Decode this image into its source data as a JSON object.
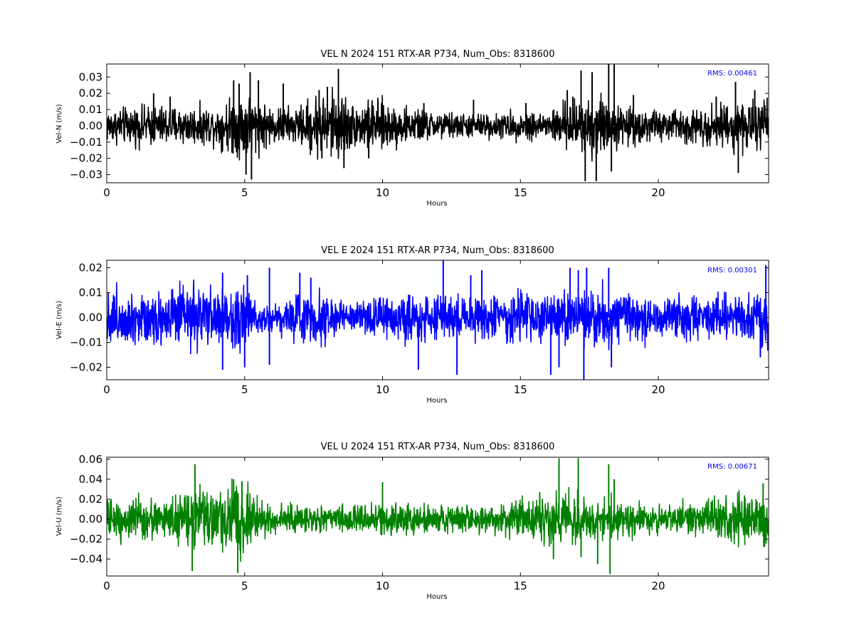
{
  "chart_data": [
    {
      "type": "line",
      "title": "VEL N 2024 151 RTX-AR  P734, Num_Obs: 8318600",
      "xlabel": "Hours",
      "ylabel": "Vel-N (m/s)",
      "xlim": [
        0,
        24
      ],
      "ylim": [
        -0.035,
        0.038
      ],
      "x_ticks": [
        0,
        5,
        10,
        15,
        20
      ],
      "x_tick_labels": [
        "0",
        "5",
        "10",
        "15",
        "20"
      ],
      "y_ticks": [
        -0.03,
        -0.02,
        -0.01,
        0.0,
        0.01,
        0.02,
        0.03
      ],
      "y_tick_labels": [
        "−0.03",
        "−0.02",
        "−0.01",
        "0.00",
        "0.01",
        "0.02",
        "0.03"
      ],
      "grid": false,
      "color": "#000000",
      "annotation": "RMS:  0.00461",
      "annotation_color": "#0000ff",
      "rms": 0.00461,
      "envelope": {
        "hours": [
          0,
          1,
          2,
          3,
          4,
          4.5,
          5,
          5.5,
          6,
          7,
          7.5,
          8,
          8.5,
          9,
          9.5,
          10,
          11,
          12,
          13,
          14,
          15,
          16,
          17,
          17.5,
          18,
          18.5,
          19,
          20,
          21,
          22,
          23,
          24
        ],
        "amplitude": [
          0.011,
          0.012,
          0.013,
          0.012,
          0.012,
          0.018,
          0.022,
          0.017,
          0.012,
          0.012,
          0.02,
          0.022,
          0.023,
          0.013,
          0.017,
          0.016,
          0.011,
          0.009,
          0.008,
          0.008,
          0.009,
          0.01,
          0.017,
          0.021,
          0.02,
          0.013,
          0.012,
          0.01,
          0.011,
          0.013,
          0.016,
          0.016
        ]
      },
      "spikes": [
        {
          "x": 1.7,
          "y": 0.02
        },
        {
          "x": 2.3,
          "y": 0.018
        },
        {
          "x": 4.6,
          "y": 0.028
        },
        {
          "x": 4.8,
          "y": 0.026
        },
        {
          "x": 5.2,
          "y": 0.033
        },
        {
          "x": 5.25,
          "y": -0.033
        },
        {
          "x": 5.5,
          "y": 0.028
        },
        {
          "x": 5.05,
          "y": -0.03
        },
        {
          "x": 6.4,
          "y": 0.026
        },
        {
          "x": 7.7,
          "y": 0.022
        },
        {
          "x": 7.8,
          "y": -0.02
        },
        {
          "x": 8.0,
          "y": 0.024
        },
        {
          "x": 8.4,
          "y": 0.035
        },
        {
          "x": 8.6,
          "y": -0.026
        },
        {
          "x": 9.5,
          "y": -0.02
        },
        {
          "x": 11.5,
          "y": 0.014
        },
        {
          "x": 13.3,
          "y": 0.016
        },
        {
          "x": 15.2,
          "y": 0.014
        },
        {
          "x": 16.7,
          "y": 0.022
        },
        {
          "x": 16.9,
          "y": 0.018
        },
        {
          "x": 17.2,
          "y": 0.034
        },
        {
          "x": 17.35,
          "y": -0.034
        },
        {
          "x": 17.6,
          "y": 0.033
        },
        {
          "x": 17.75,
          "y": -0.034
        },
        {
          "x": 18.2,
          "y": 0.038
        },
        {
          "x": 18.3,
          "y": -0.028
        },
        {
          "x": 18.4,
          "y": 0.038
        },
        {
          "x": 19.1,
          "y": 0.019
        },
        {
          "x": 22.1,
          "y": 0.018
        },
        {
          "x": 22.8,
          "y": 0.027
        },
        {
          "x": 22.9,
          "y": -0.029
        },
        {
          "x": 23.5,
          "y": 0.022
        }
      ]
    },
    {
      "type": "line",
      "title": "VEL E 2024 151 RTX-AR  P734, Num_Obs: 8318600",
      "xlabel": "Hours",
      "ylabel": "Vel-E (m/s)",
      "xlim": [
        0,
        24
      ],
      "ylim": [
        -0.025,
        0.023
      ],
      "x_ticks": [
        0,
        5,
        10,
        15,
        20
      ],
      "x_tick_labels": [
        "0",
        "5",
        "10",
        "15",
        "20"
      ],
      "y_ticks": [
        -0.02,
        -0.01,
        0.0,
        0.01,
        0.02
      ],
      "y_tick_labels": [
        "−0.02",
        "−0.01",
        "0.00",
        "0.01",
        "0.02"
      ],
      "grid": false,
      "color": "#0000ff",
      "annotation": "RMS:  0.00301",
      "annotation_color": "#0000ff",
      "rms": 0.00301,
      "envelope": {
        "hours": [
          0,
          1,
          2,
          3,
          4,
          4.5,
          5,
          5.5,
          6,
          6.5,
          7,
          7.5,
          8,
          8.5,
          9,
          10,
          11,
          12,
          13,
          14,
          15,
          16,
          17,
          18,
          19,
          20,
          21,
          22,
          23,
          24
        ],
        "amplitude": [
          0.012,
          0.012,
          0.012,
          0.013,
          0.013,
          0.013,
          0.012,
          0.007,
          0.006,
          0.008,
          0.011,
          0.011,
          0.011,
          0.006,
          0.005,
          0.009,
          0.01,
          0.01,
          0.01,
          0.01,
          0.011,
          0.011,
          0.012,
          0.012,
          0.01,
          0.009,
          0.009,
          0.009,
          0.01,
          0.013
        ]
      },
      "spikes": [
        {
          "x": 4.2,
          "y": -0.021
        },
        {
          "x": 4.2,
          "y": 0.018
        },
        {
          "x": 5.0,
          "y": -0.02
        },
        {
          "x": 5.1,
          "y": 0.017
        },
        {
          "x": 5.9,
          "y": 0.02
        },
        {
          "x": 5.9,
          "y": -0.019
        },
        {
          "x": 7.0,
          "y": 0.018
        },
        {
          "x": 7.4,
          "y": 0.016
        },
        {
          "x": 11.3,
          "y": -0.021
        },
        {
          "x": 12.2,
          "y": 0.023
        },
        {
          "x": 12.7,
          "y": -0.023
        },
        {
          "x": 13.2,
          "y": 0.017
        },
        {
          "x": 13.6,
          "y": 0.019
        },
        {
          "x": 16.1,
          "y": -0.023
        },
        {
          "x": 16.4,
          "y": -0.02
        },
        {
          "x": 16.8,
          "y": 0.02
        },
        {
          "x": 17.1,
          "y": 0.019
        },
        {
          "x": 17.3,
          "y": -0.025
        },
        {
          "x": 17.4,
          "y": 0.02
        },
        {
          "x": 18.2,
          "y": 0.02
        },
        {
          "x": 18.3,
          "y": -0.02
        },
        {
          "x": 23.9,
          "y": 0.021
        },
        {
          "x": 23.7,
          "y": -0.016
        }
      ]
    },
    {
      "type": "line",
      "title": "VEL U 2024 151 RTX-AR  P734, Num_Obs: 8318600",
      "xlabel": "Hours",
      "ylabel": "Vel-U (m/s)",
      "xlim": [
        0,
        24
      ],
      "ylim": [
        -0.057,
        0.062
      ],
      "x_ticks": [
        0,
        5,
        10,
        15,
        20
      ],
      "x_tick_labels": [
        "0",
        "5",
        "10",
        "15",
        "20"
      ],
      "y_ticks": [
        -0.04,
        -0.02,
        0.0,
        0.02,
        0.04,
        0.06
      ],
      "y_tick_labels": [
        "−0.04",
        "−0.02",
        "0.00",
        "0.02",
        "0.04",
        "0.06"
      ],
      "grid": false,
      "color": "#008000",
      "annotation": "RMS:  0.00671",
      "annotation_color": "#0000ff",
      "rms": 0.00671,
      "envelope": {
        "hours": [
          0,
          1,
          2,
          3,
          3.5,
          4,
          4.5,
          5,
          5.5,
          6,
          7,
          8,
          9,
          10,
          11,
          12,
          13,
          14,
          15,
          16,
          17,
          18,
          19,
          20,
          21,
          22,
          23,
          24
        ],
        "amplitude": [
          0.02,
          0.025,
          0.018,
          0.028,
          0.032,
          0.028,
          0.036,
          0.036,
          0.025,
          0.018,
          0.015,
          0.014,
          0.015,
          0.015,
          0.016,
          0.016,
          0.015,
          0.016,
          0.02,
          0.025,
          0.028,
          0.025,
          0.02,
          0.015,
          0.017,
          0.02,
          0.03,
          0.026
        ]
      },
      "spikes": [
        {
          "x": 3.1,
          "y": -0.052
        },
        {
          "x": 3.2,
          "y": 0.055
        },
        {
          "x": 4.6,
          "y": 0.04
        },
        {
          "x": 4.75,
          "y": -0.054
        },
        {
          "x": 4.9,
          "y": 0.038
        },
        {
          "x": 10.0,
          "y": 0.037
        },
        {
          "x": 15.7,
          "y": 0.027
        },
        {
          "x": 16.2,
          "y": -0.04
        },
        {
          "x": 16.4,
          "y": 0.061
        },
        {
          "x": 17.1,
          "y": 0.061
        },
        {
          "x": 17.2,
          "y": -0.038
        },
        {
          "x": 17.8,
          "y": -0.045
        },
        {
          "x": 18.2,
          "y": 0.055
        },
        {
          "x": 18.25,
          "y": -0.055
        },
        {
          "x": 18.4,
          "y": 0.04
        },
        {
          "x": 23.8,
          "y": 0.036
        }
      ]
    }
  ]
}
